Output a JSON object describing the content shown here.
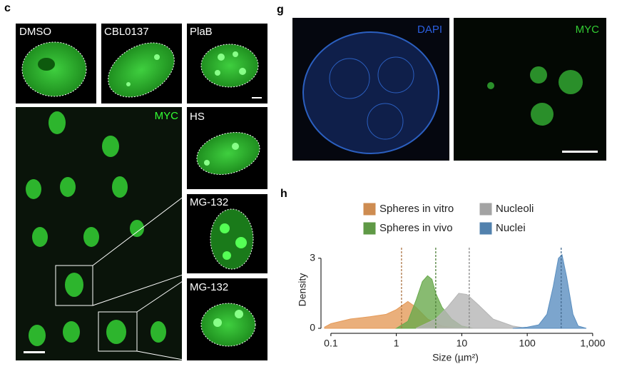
{
  "panel_labels": {
    "c": "c",
    "g": "g",
    "h": "h"
  },
  "panel_c": {
    "tiles": [
      "DMSO",
      "CBL0137",
      "PlaB",
      "HS",
      "MG-132",
      "MG-132"
    ],
    "overview_label": "MYC"
  },
  "panel_g": {
    "channels": [
      "DAPI",
      "MYC"
    ]
  },
  "chart_data": {
    "type": "area",
    "ylabel": "Density",
    "xlabel": "Size (µm²)",
    "xscale": "log",
    "xlim": [
      0.08,
      800
    ],
    "ylim": [
      0,
      3.3
    ],
    "xticks": [
      0.1,
      1,
      10,
      100,
      {
        "value": 1000,
        "label": "1,000"
      }
    ],
    "yticks": [
      0,
      3
    ],
    "series": [
      {
        "name": "Spheres in vitro",
        "color": "#e59b5a",
        "median": 1.2,
        "x": [
          0.08,
          0.1,
          0.2,
          0.4,
          0.7,
          1,
          1.5,
          2,
          3,
          5,
          8,
          15
        ],
        "values": [
          0.05,
          0.2,
          0.4,
          0.5,
          0.6,
          0.8,
          1.15,
          0.9,
          0.4,
          0.1,
          0.02,
          0
        ]
      },
      {
        "name": "Spheres in vivo",
        "color": "#6aaa4e",
        "median": 4,
        "x": [
          1,
          1.5,
          2,
          2.5,
          3,
          3.5,
          4,
          5,
          7,
          10,
          15
        ],
        "values": [
          0,
          0.3,
          1.2,
          2.0,
          2.25,
          2.1,
          1.5,
          0.9,
          0.4,
          0.1,
          0
        ]
      },
      {
        "name": "Nucleoli",
        "color": "#b5b5b5",
        "median": 13,
        "x": [
          2,
          4,
          6,
          9,
          12,
          18,
          30,
          60,
          100
        ],
        "values": [
          0,
          0.4,
          0.9,
          1.5,
          1.45,
          1.0,
          0.4,
          0.1,
          0
        ]
      },
      {
        "name": "Nuclei",
        "color": "#5b8fc0",
        "median": 330,
        "x": [
          60,
          100,
          150,
          200,
          250,
          300,
          340,
          400,
          500,
          600,
          800
        ],
        "values": [
          0,
          0.05,
          0.15,
          0.6,
          1.8,
          3.0,
          3.15,
          2.2,
          0.6,
          0.1,
          0
        ]
      }
    ]
  }
}
